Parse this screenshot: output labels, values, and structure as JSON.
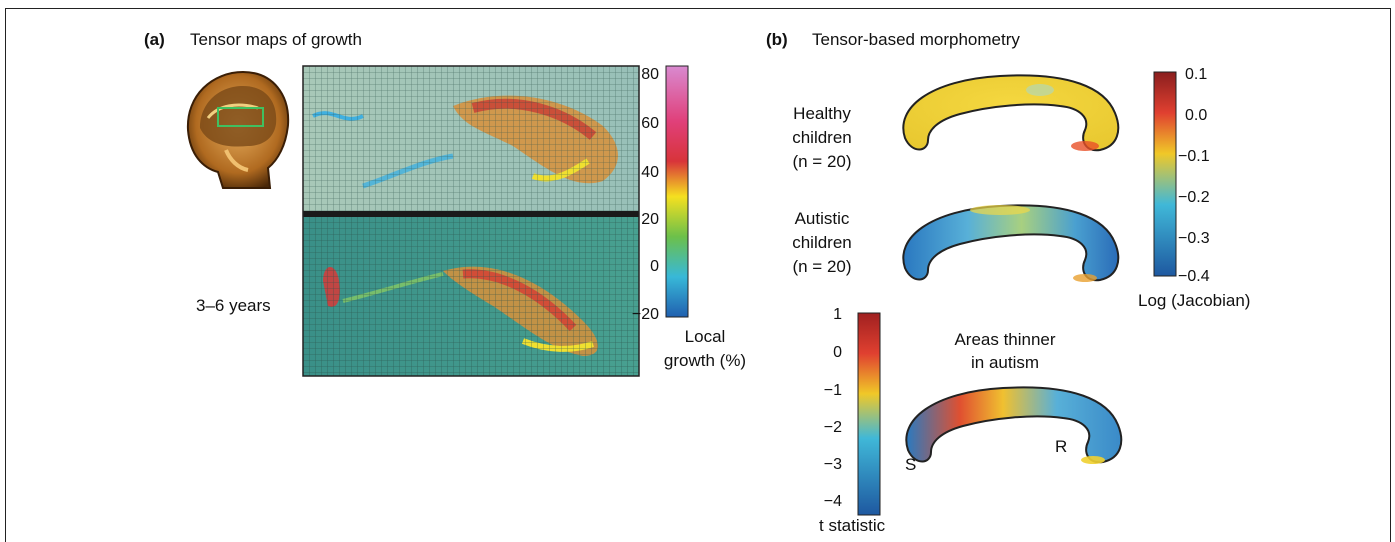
{
  "panel_a": {
    "letter": "(a)",
    "title": "Tensor maps of growth",
    "age_label": "3–6 years",
    "colorbar": {
      "ticks": [
        "80",
        "60",
        "40",
        "20",
        "0",
        "−20"
      ],
      "label_line1": "Local",
      "label_line2": "growth (%)",
      "stops": [
        "#d98ad0",
        "#e0407a",
        "#d8343a",
        "#f5e020",
        "#6cc04a",
        "#38b8d8",
        "#2060b0"
      ]
    }
  },
  "panel_b": {
    "letter": "(b)",
    "title": "Tensor-based morphometry",
    "healthy": {
      "line1": "Healthy",
      "line2": "children",
      "line3": "(n = 20)"
    },
    "autistic": {
      "line1": "Autistic",
      "line2": "children",
      "line3": "(n = 20)"
    },
    "jacobian_bar": {
      "ticks": [
        "0.1",
        "0.0",
        "−0.1",
        "−0.2",
        "−0.3",
        "−0.4"
      ],
      "label": "Log (Jacobian)"
    },
    "tstat_bar": {
      "ticks": [
        "1",
        "0",
        "−1",
        "−2",
        "−3",
        "−4"
      ],
      "label": "t statistic"
    },
    "thinner": {
      "line1": "Areas thinner",
      "line2": "in autism"
    },
    "marker_s": "S",
    "marker_r": "R"
  }
}
